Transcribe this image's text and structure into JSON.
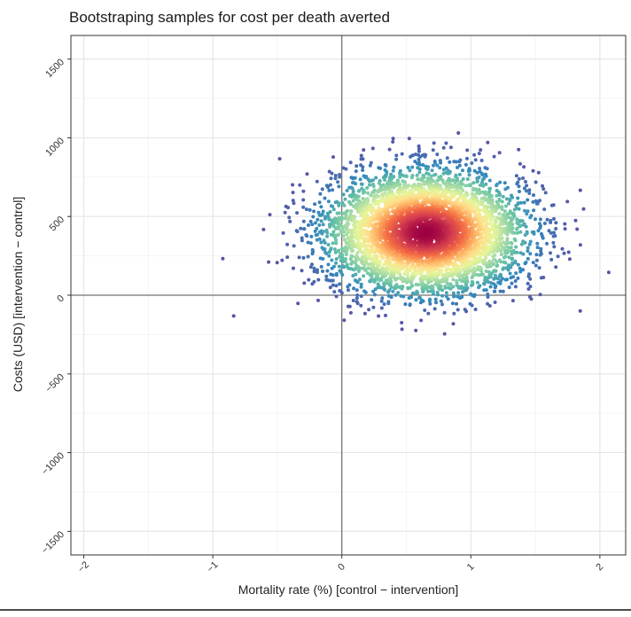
{
  "chart_data": {
    "type": "scatter",
    "title": "Bootstraping samples for cost per death averted",
    "xlabel": "Mortality rate (%) [control − intervention]",
    "ylabel": "Costs (USD) [intervention − control]",
    "xlim": [
      -2.1,
      2.2
    ],
    "ylim": [
      -1650,
      1650
    ],
    "x_ticks": [
      -2,
      -1,
      0,
      1,
      2
    ],
    "x_tick_labels": [
      "−2",
      "−1",
      "0",
      "1",
      "2"
    ],
    "y_ticks": [
      -1500,
      -1000,
      -500,
      0,
      500,
      1000,
      1500
    ],
    "y_tick_labels": [
      "−1500",
      "−1000",
      "−500",
      "0",
      "500",
      "1000",
      "1500"
    ],
    "grid": true,
    "reference_lines": {
      "x": 0,
      "y": 0
    },
    "color_scale": "spectral density (blue = low, red = high)",
    "colors": [
      "#5e4fa2",
      "#3288bd",
      "#66c2a5",
      "#abdda4",
      "#e6f598",
      "#fee08b",
      "#fdae61",
      "#f46d43",
      "#d53e4f",
      "#9e0142"
    ],
    "distribution": {
      "n_points": 5000,
      "center": {
        "x": 0.65,
        "y": 400
      },
      "sd": {
        "x": 0.38,
        "y": 190
      }
    }
  }
}
